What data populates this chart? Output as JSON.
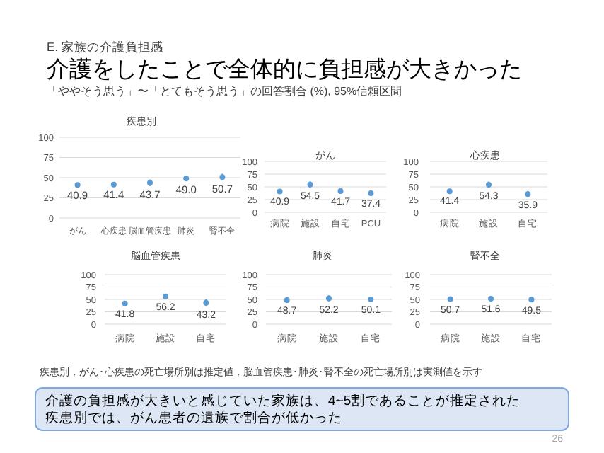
{
  "chart_data": [
    {
      "type": "other",
      "annotations": [
        "E. 家族の介護負担感"
      ],
      "title": "介護をしたことで全体的に負担感が大きかった",
      "subtitle": "「ややそう思う」〜「とてもそう思う」の回答割合 (%), 95%信頼区間"
    },
    {
      "type": "scatter",
      "title": "疾患別",
      "categories": [
        "がん",
        "心疾患",
        "脳血管疾患",
        "肺炎",
        "腎不全"
      ],
      "values": [
        40.9,
        41.4,
        43.7,
        49.0,
        50.7
      ],
      "errors": [
        2,
        2,
        4,
        3,
        4
      ],
      "color": "#5b9bd5",
      "ylim": [
        0,
        100
      ],
      "yticks": [
        0,
        25,
        50,
        75,
        100
      ],
      "grid": "y",
      "marker": "circle",
      "value_labels": [
        "40.9",
        "41.4",
        "43.7",
        "49.0",
        "50.7"
      ]
    },
    {
      "type": "scatter",
      "title": "がん",
      "categories": [
        "病院",
        "施設",
        "自宅",
        "PCU"
      ],
      "values": [
        40.9,
        54.5,
        41.7,
        37.4
      ],
      "errors": [
        3,
        6,
        4,
        4
      ],
      "color": "#5b9bd5",
      "ylim": [
        0,
        100
      ],
      "yticks": [
        0,
        25,
        50,
        75,
        100
      ],
      "grid": "y",
      "marker": "circle",
      "data_labels": true
    },
    {
      "type": "scatter",
      "title": "心疾患",
      "categories": [
        "病院",
        "施設",
        "自宅"
      ],
      "values": [
        41.4,
        54.3,
        35.9
      ],
      "errors": [
        3,
        6,
        6
      ],
      "color": "#5b9bd5",
      "ylim": [
        0,
        100
      ],
      "yticks": [
        0,
        25,
        50,
        75,
        100
      ],
      "grid": "y",
      "marker": "circle",
      "data_labels": true
    },
    {
      "type": "scatter",
      "title": "脳血管疾患",
      "categories": [
        "病院",
        "施設",
        "自宅"
      ],
      "values": [
        41.8,
        56.2,
        43.2
      ],
      "errors": [
        5,
        5,
        7
      ],
      "color": "#5b9bd5",
      "ylim": [
        0,
        100
      ],
      "yticks": [
        0,
        25,
        50,
        75,
        100
      ],
      "grid": "y",
      "marker": "circle",
      "data_labels": true
    },
    {
      "type": "scatter",
      "title": "肺炎",
      "categories": [
        "病院",
        "施設",
        "自宅"
      ],
      "values": [
        48.7,
        52.2,
        50.1
      ],
      "errors": [
        5,
        6,
        5
      ],
      "color": "#5b9bd5",
      "ylim": [
        0,
        100
      ],
      "yticks": [
        0,
        25,
        50,
        75,
        100
      ],
      "grid": "y",
      "marker": "circle",
      "data_labels": true
    },
    {
      "type": "scatter",
      "title": "腎不全",
      "categories": [
        "病院",
        "施設",
        "自宅"
      ],
      "values": [
        50.7,
        51.6,
        49.5
      ],
      "errors": [
        5,
        5,
        5
      ],
      "color": "#5b9bd5",
      "ylim": [
        0,
        100
      ],
      "yticks": [
        0,
        25,
        50,
        75,
        100
      ],
      "grid": "y",
      "marker": "circle",
      "data_labels": true
    },
    {
      "type": "other",
      "annotations": [
        "疾患別，がん･心疾患の死亡場所別は推定値，脳血管疾患･肺炎･腎不全の死亡場所別は実測値を示す",
        "介護の負担感が大きいと感じていた家族は、4~5割であることが推定された",
        "疾患別では、がん患者の遺族で割合が低かった",
        "26"
      ]
    }
  ]
}
